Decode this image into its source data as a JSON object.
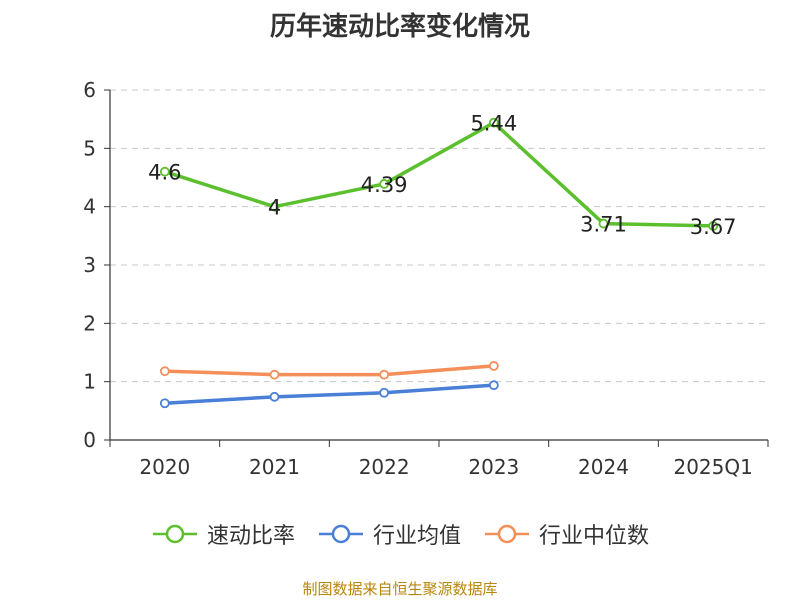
{
  "chart_data": {
    "type": "line",
    "title": "历年速动比率变化情况",
    "categories": [
      "2020",
      "2021",
      "2022",
      "2023",
      "2024",
      "2025Q1"
    ],
    "ylim": [
      0,
      6
    ],
    "yticks": [
      0,
      1,
      2,
      3,
      4,
      5,
      6
    ],
    "grid": true,
    "legend_position": "bottom",
    "series": [
      {
        "name": "速动比率",
        "color": "#5cc02e",
        "values": [
          4.6,
          4.0,
          4.39,
          5.44,
          3.71,
          3.67
        ],
        "labels": [
          "4.6",
          "4",
          "4.39",
          "5.44",
          "3.71",
          "3.67"
        ]
      },
      {
        "name": "行业均值",
        "color": "#4a7fd8",
        "values": [
          0.63,
          0.74,
          0.81,
          0.94,
          null,
          null
        ]
      },
      {
        "name": "行业中位数",
        "color": "#f58f5a",
        "values": [
          1.18,
          1.12,
          1.12,
          1.27,
          null,
          null
        ]
      }
    ]
  },
  "footer": {
    "source": "制图数据来自恒生聚源数据库"
  }
}
